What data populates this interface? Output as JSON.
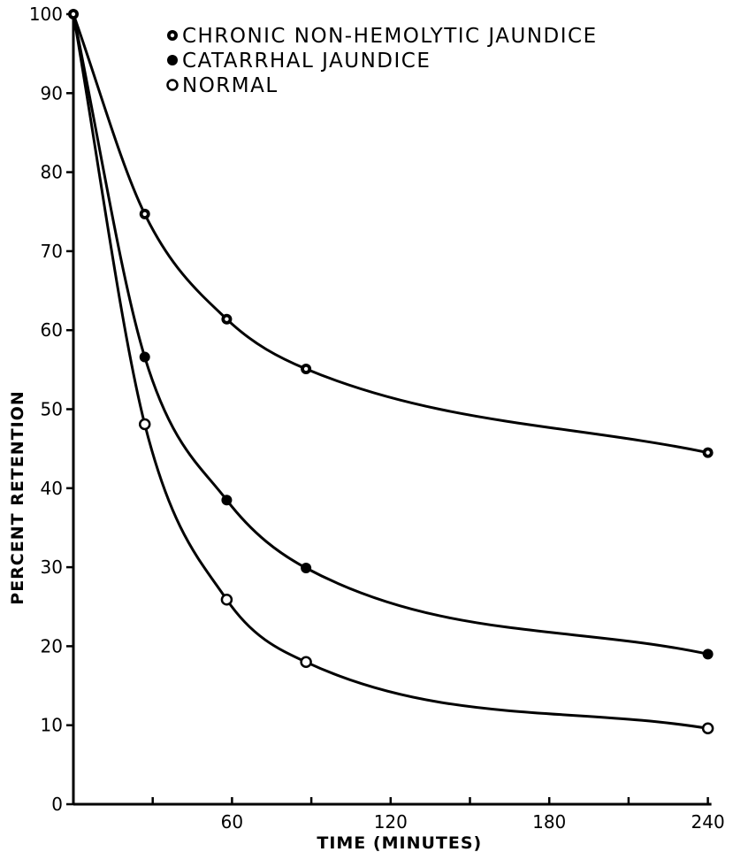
{
  "chart_data": {
    "type": "line",
    "xlabel": "TIME (MINUTES)",
    "ylabel": "PERCENT RETENTION",
    "xlim": [
      0,
      240
    ],
    "ylim": [
      0,
      100
    ],
    "x_ticks": [
      60,
      120,
      180,
      240
    ],
    "x_minor_ticks": [
      30,
      90,
      150,
      210
    ],
    "y_ticks": [
      0,
      10,
      20,
      30,
      40,
      50,
      60,
      70,
      80,
      90,
      100
    ],
    "grid": false,
    "legend_position": "top",
    "series": [
      {
        "name": "CHRONIC NON-HEMOLYTIC JAUNDICE",
        "marker": "dotted-circle",
        "points": [
          [
            0,
            100
          ],
          [
            27,
            74.7
          ],
          [
            58,
            61.4
          ],
          [
            88,
            55.1
          ],
          [
            240,
            44.5
          ]
        ]
      },
      {
        "name": "CATARRHAL JAUNDICE",
        "marker": "filled-circle",
        "points": [
          [
            0,
            100
          ],
          [
            27,
            56.6
          ],
          [
            58,
            38.5
          ],
          [
            88,
            29.9
          ],
          [
            240,
            19.0
          ]
        ]
      },
      {
        "name": "NORMAL",
        "marker": "open-circle",
        "points": [
          [
            0,
            100
          ],
          [
            27,
            48.1
          ],
          [
            58,
            25.9
          ],
          [
            88,
            18.0
          ],
          [
            240,
            9.6
          ]
        ]
      }
    ]
  }
}
